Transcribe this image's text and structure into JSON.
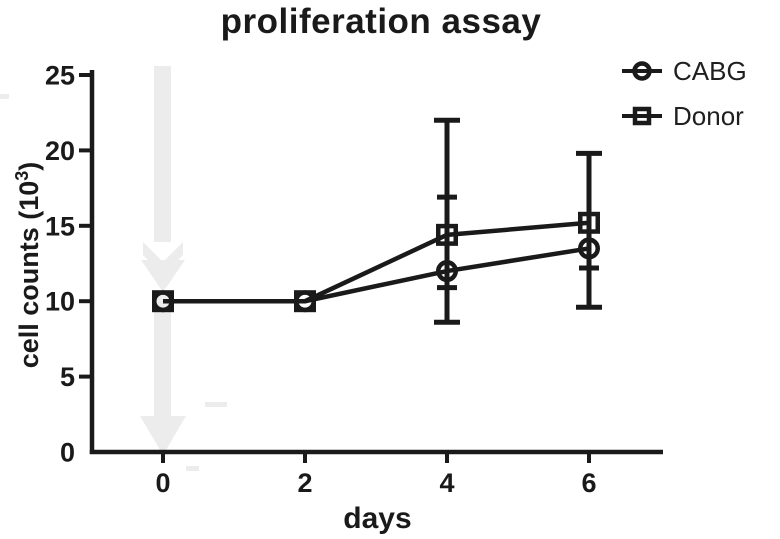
{
  "figure": {
    "title": "proliferation assay",
    "xlabel": "days",
    "ylabel": {
      "pre": "cell counts (10",
      "sup": "3",
      "post": ")"
    }
  },
  "colors": {
    "ink": "#1a1a1a",
    "legend_text": "#1f1f1f",
    "watermark": "#ececec",
    "background": "#ffffff"
  },
  "chart_data": {
    "type": "line",
    "title": "proliferation assay",
    "xlabel": "days",
    "ylabel": "cell counts (10^3)",
    "x": [
      0,
      2,
      4,
      6
    ],
    "xticks": [
      "0",
      "2",
      "4",
      "6"
    ],
    "yticks": [
      "0",
      "5",
      "10",
      "15",
      "20",
      "25"
    ],
    "ytick_values": [
      0,
      5,
      10,
      15,
      20,
      25
    ],
    "ylim": [
      0,
      25
    ],
    "xlim": [
      -1,
      7
    ],
    "grid": false,
    "legend_position": "top-right",
    "series": [
      {
        "name": "CABG",
        "marker": "circle",
        "values": [
          10,
          10,
          12,
          13.5
        ],
        "error_low": [
          10,
          10,
          10.9,
          12.2
        ],
        "error_high": [
          10,
          10,
          16.9,
          13.5
        ]
      },
      {
        "name": "Donor",
        "marker": "square",
        "values": [
          10,
          10,
          14.4,
          15.2
        ],
        "error_low": [
          10,
          10,
          8.6,
          9.6
        ],
        "error_high": [
          10,
          10,
          22,
          19.8
        ]
      }
    ]
  }
}
